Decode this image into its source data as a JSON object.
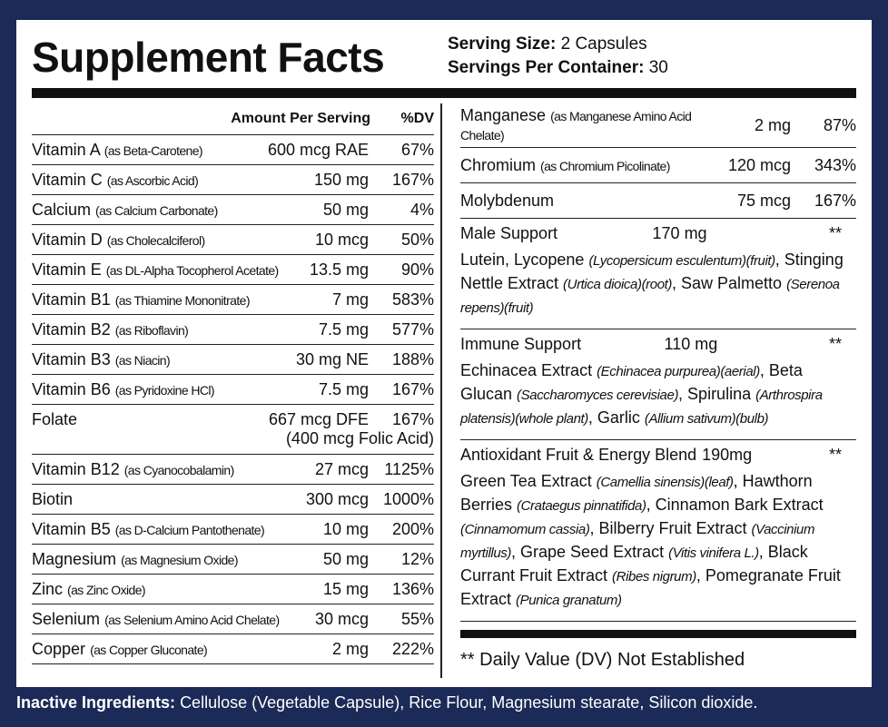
{
  "title": "Supplement Facts",
  "serving": [
    {
      "label": "Serving Size:",
      "value": "2 Capsules"
    },
    {
      "label": "Servings Per Container:",
      "value": "30"
    }
  ],
  "header": {
    "amount": "Amount Per Serving",
    "dv": "%DV"
  },
  "left_rows": [
    {
      "name": "Vitamin A",
      "source": "(as Beta-Carotene)",
      "amount": "600 mcg RAE",
      "dv": "67%"
    },
    {
      "name": "Vitamin C",
      "source": "(as Ascorbic Acid)",
      "amount": "150 mg",
      "dv": "167%"
    },
    {
      "name": "Calcium",
      "source": "(as Calcium Carbonate)",
      "amount": "50 mg",
      "dv": "4%"
    },
    {
      "name": "Vitamin D",
      "source": "(as Cholecalciferol)",
      "amount": "10 mcg",
      "dv": "50%"
    },
    {
      "name": "Vitamin E",
      "source": "(as DL-Alpha Tocopherol Acetate)",
      "amount": "13.5 mg",
      "dv": "90%"
    },
    {
      "name": "Vitamin B1",
      "source": "(as Thiamine Mononitrate)",
      "amount": "7 mg",
      "dv": "583%"
    },
    {
      "name": "Vitamin B2",
      "source": "(as Riboflavin)",
      "amount": "7.5 mg",
      "dv": "577%"
    },
    {
      "name": "Vitamin B3",
      "source": "(as Niacin)",
      "amount": "30 mg NE",
      "dv": "188%"
    },
    {
      "name": "Vitamin B6",
      "source": "(as Pyridoxine HCl)",
      "amount": "7.5 mg",
      "dv": "167%"
    },
    {
      "name": "Folate",
      "amount": "667 mcg DFE",
      "dv": "167%",
      "note": "(400 mcg Folic Acid)"
    },
    {
      "name": "Vitamin B12",
      "source": "(as Cyanocobalamin)",
      "amount": "27 mcg",
      "dv": "1125%"
    },
    {
      "name": "Biotin",
      "amount": "300 mcg",
      "dv": "1000%"
    },
    {
      "name": "Vitamin B5",
      "source": "(as D-Calcium Pantothenate)",
      "amount": "10 mg",
      "dv": "200%"
    },
    {
      "name": "Magnesium",
      "source": "(as Magnesium Oxide)",
      "amount": "50 mg",
      "dv": "12%"
    },
    {
      "name": "Zinc",
      "source": "(as Zinc Oxide)",
      "amount": "15 mg",
      "dv": "136%"
    },
    {
      "name": "Selenium",
      "source": "(as Selenium Amino Acid Chelate)",
      "amount": "30 mcg",
      "dv": "55%"
    },
    {
      "name": "Copper",
      "source": "(as Copper Gluconate)",
      "amount": "2 mg",
      "dv": "222%"
    }
  ],
  "right_rows": [
    {
      "name": "Manganese",
      "source": "(as Manganese Amino Acid Chelate)",
      "amount": "2 mg",
      "dv": "87%"
    },
    {
      "name": "Chromium",
      "source": "(as Chromium Picolinate)",
      "amount": "120 mcg",
      "dv": "343%"
    },
    {
      "name": "Molybdenum",
      "amount": "75 mcg",
      "dv": "167%"
    }
  ],
  "blends": [
    {
      "name": "Male Support",
      "amount": "170 mg",
      "dv": "**",
      "description": [
        {
          "text": "Lutein, Lycopene "
        },
        {
          "text": "(Lycopersicum esculentum)(fruit)",
          "italic": true
        },
        {
          "text": ", Stinging Nettle Extract "
        },
        {
          "text": "(Urtica dioica)(root)",
          "italic": true
        },
        {
          "text": ", Saw Palmetto "
        },
        {
          "text": "(Serenoa repens)(fruit)",
          "italic": true
        }
      ]
    },
    {
      "name": "Immune Support",
      "amount": "110 mg",
      "dv": "**",
      "description": [
        {
          "text": "Echinacea Extract "
        },
        {
          "text": "(Echinacea purpurea)(aerial)",
          "italic": true
        },
        {
          "text": ", Beta Glucan "
        },
        {
          "text": "(Saccharomyces cerevisiae)",
          "italic": true
        },
        {
          "text": ", Spirulina "
        },
        {
          "text": "(Arthrospira platensis)(whole plant)",
          "italic": true
        },
        {
          "text": ", Garlic "
        },
        {
          "text": "(Allium sativum)(bulb)",
          "italic": true
        }
      ]
    },
    {
      "name": "Antioxidant Fruit & Energy Blend",
      "amount": "190mg",
      "dv": "**",
      "description": [
        {
          "text": "Green Tea Extract "
        },
        {
          "text": "(Camellia sinensis)(leaf)",
          "italic": true
        },
        {
          "text": ", Hawthorn Berries "
        },
        {
          "text": "(Crataegus pinnatifida)",
          "italic": true
        },
        {
          "text": ", Cinnamon Bark Extract "
        },
        {
          "text": "(Cinnamomum cassia)",
          "italic": true
        },
        {
          "text": ", Bilberry Fruit Extract "
        },
        {
          "text": "(Vaccinium myrtillus)",
          "italic": true
        },
        {
          "text": ", Grape Seed Extract "
        },
        {
          "text": "(Vitis vinifera L.)",
          "italic": true
        },
        {
          "text": ", Black Currant Fruit Extract "
        },
        {
          "text": "(Ribes nigrum)",
          "italic": true
        },
        {
          "text": ", Pomegranate Fruit Extract "
        },
        {
          "text": "(Punica granatum)",
          "italic": true
        }
      ]
    }
  ],
  "footnote": "** Daily Value (DV) Not Established",
  "inactive": {
    "label": "Inactive Ingredients:",
    "text": "Cellulose (Vegetable Capsule), Rice Flour, Magnesium stearate, Silicon dioxide."
  }
}
